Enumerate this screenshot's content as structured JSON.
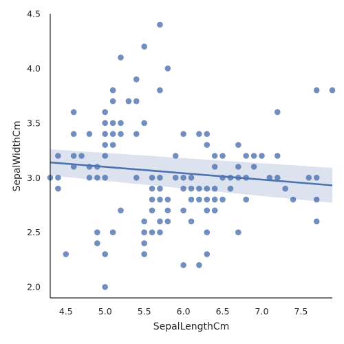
{
  "chart_data": {
    "type": "scatter",
    "title": "",
    "xlabel": "SepalLengthCm",
    "ylabel": "SepalWidthCm",
    "xlim": [
      4.3,
      7.9
    ],
    "ylim": [
      1.9,
      4.5
    ],
    "xticks": [
      "4.5",
      "5.0",
      "5.5",
      "6.0",
      "6.5",
      "7.0",
      "7.5"
    ],
    "yticks": [
      "2.0",
      "2.5",
      "3.0",
      "3.5",
      "4.0",
      "4.5"
    ],
    "grid": false,
    "colors": {
      "points": "#4c72b0",
      "line": "#4c72b0",
      "band": "#c9d4e6",
      "axis": "#262626"
    },
    "regression": {
      "x": [
        4.3,
        7.9
      ],
      "y": [
        3.14,
        2.93
      ],
      "ci_lower": [
        3.02,
        2.77
      ],
      "ci_upper": [
        3.26,
        3.09
      ]
    },
    "points": [
      [
        4.3,
        3.0
      ],
      [
        4.4,
        3.2
      ],
      [
        4.4,
        3.0
      ],
      [
        4.4,
        2.9
      ],
      [
        4.5,
        2.3
      ],
      [
        4.6,
        3.6
      ],
      [
        4.6,
        3.4
      ],
      [
        4.6,
        3.2
      ],
      [
        4.6,
        3.1
      ],
      [
        4.7,
        3.2
      ],
      [
        4.8,
        3.4
      ],
      [
        4.8,
        3.1
      ],
      [
        4.8,
        3.0
      ],
      [
        4.9,
        3.1
      ],
      [
        4.9,
        3.0
      ],
      [
        4.9,
        2.5
      ],
      [
        4.9,
        2.4
      ],
      [
        5.0,
        3.6
      ],
      [
        5.0,
        3.5
      ],
      [
        5.0,
        3.4
      ],
      [
        5.0,
        3.3
      ],
      [
        5.0,
        3.2
      ],
      [
        5.0,
        3.0
      ],
      [
        5.0,
        2.3
      ],
      [
        5.0,
        2.0
      ],
      [
        5.1,
        3.8
      ],
      [
        5.1,
        3.7
      ],
      [
        5.1,
        3.5
      ],
      [
        5.1,
        3.4
      ],
      [
        5.1,
        3.3
      ],
      [
        5.1,
        2.5
      ],
      [
        5.2,
        4.1
      ],
      [
        5.2,
        3.5
      ],
      [
        5.2,
        3.4
      ],
      [
        5.2,
        2.7
      ],
      [
        5.3,
        3.7
      ],
      [
        5.4,
        3.9
      ],
      [
        5.4,
        3.7
      ],
      [
        5.4,
        3.4
      ],
      [
        5.4,
        3.0
      ],
      [
        5.5,
        4.2
      ],
      [
        5.5,
        3.5
      ],
      [
        5.5,
        2.6
      ],
      [
        5.5,
        2.5
      ],
      [
        5.5,
        2.4
      ],
      [
        5.5,
        2.3
      ],
      [
        5.6,
        3.0
      ],
      [
        5.6,
        2.9
      ],
      [
        5.6,
        2.8
      ],
      [
        5.6,
        2.7
      ],
      [
        5.6,
        2.5
      ],
      [
        5.7,
        4.4
      ],
      [
        5.7,
        3.8
      ],
      [
        5.7,
        3.0
      ],
      [
        5.7,
        2.9
      ],
      [
        5.7,
        2.8
      ],
      [
        5.7,
        2.6
      ],
      [
        5.7,
        2.5
      ],
      [
        5.8,
        4.0
      ],
      [
        5.8,
        2.8
      ],
      [
        5.8,
        2.7
      ],
      [
        5.8,
        2.6
      ],
      [
        5.9,
        3.2
      ],
      [
        5.9,
        3.0
      ],
      [
        6.0,
        3.4
      ],
      [
        6.0,
        3.0
      ],
      [
        6.0,
        2.9
      ],
      [
        6.0,
        2.7
      ],
      [
        6.0,
        2.2
      ],
      [
        6.1,
        3.0
      ],
      [
        6.1,
        2.9
      ],
      [
        6.1,
        2.8
      ],
      [
        6.1,
        2.6
      ],
      [
        6.2,
        3.4
      ],
      [
        6.2,
        2.9
      ],
      [
        6.2,
        2.8
      ],
      [
        6.2,
        2.2
      ],
      [
        6.3,
        3.4
      ],
      [
        6.3,
        3.3
      ],
      [
        6.3,
        2.9
      ],
      [
        6.3,
        2.8
      ],
      [
        6.3,
        2.7
      ],
      [
        6.3,
        2.5
      ],
      [
        6.3,
        2.3
      ],
      [
        6.4,
        3.2
      ],
      [
        6.4,
        3.1
      ],
      [
        6.4,
        2.9
      ],
      [
        6.4,
        2.8
      ],
      [
        6.4,
        2.7
      ],
      [
        6.5,
        3.2
      ],
      [
        6.5,
        3.0
      ],
      [
        6.5,
        2.8
      ],
      [
        6.6,
        3.0
      ],
      [
        6.6,
        2.9
      ],
      [
        6.7,
        3.3
      ],
      [
        6.7,
        3.1
      ],
      [
        6.7,
        3.0
      ],
      [
        6.7,
        2.5
      ],
      [
        6.8,
        3.2
      ],
      [
        6.8,
        3.0
      ],
      [
        6.8,
        2.8
      ],
      [
        6.9,
        3.2
      ],
      [
        6.9,
        3.1
      ],
      [
        7.0,
        3.2
      ],
      [
        7.1,
        3.0
      ],
      [
        7.2,
        3.6
      ],
      [
        7.2,
        3.2
      ],
      [
        7.2,
        3.0
      ],
      [
        7.3,
        2.9
      ],
      [
        7.4,
        2.8
      ],
      [
        7.6,
        3.0
      ],
      [
        7.7,
        3.8
      ],
      [
        7.7,
        3.0
      ],
      [
        7.7,
        2.8
      ],
      [
        7.7,
        2.6
      ],
      [
        7.9,
        3.8
      ]
    ]
  }
}
